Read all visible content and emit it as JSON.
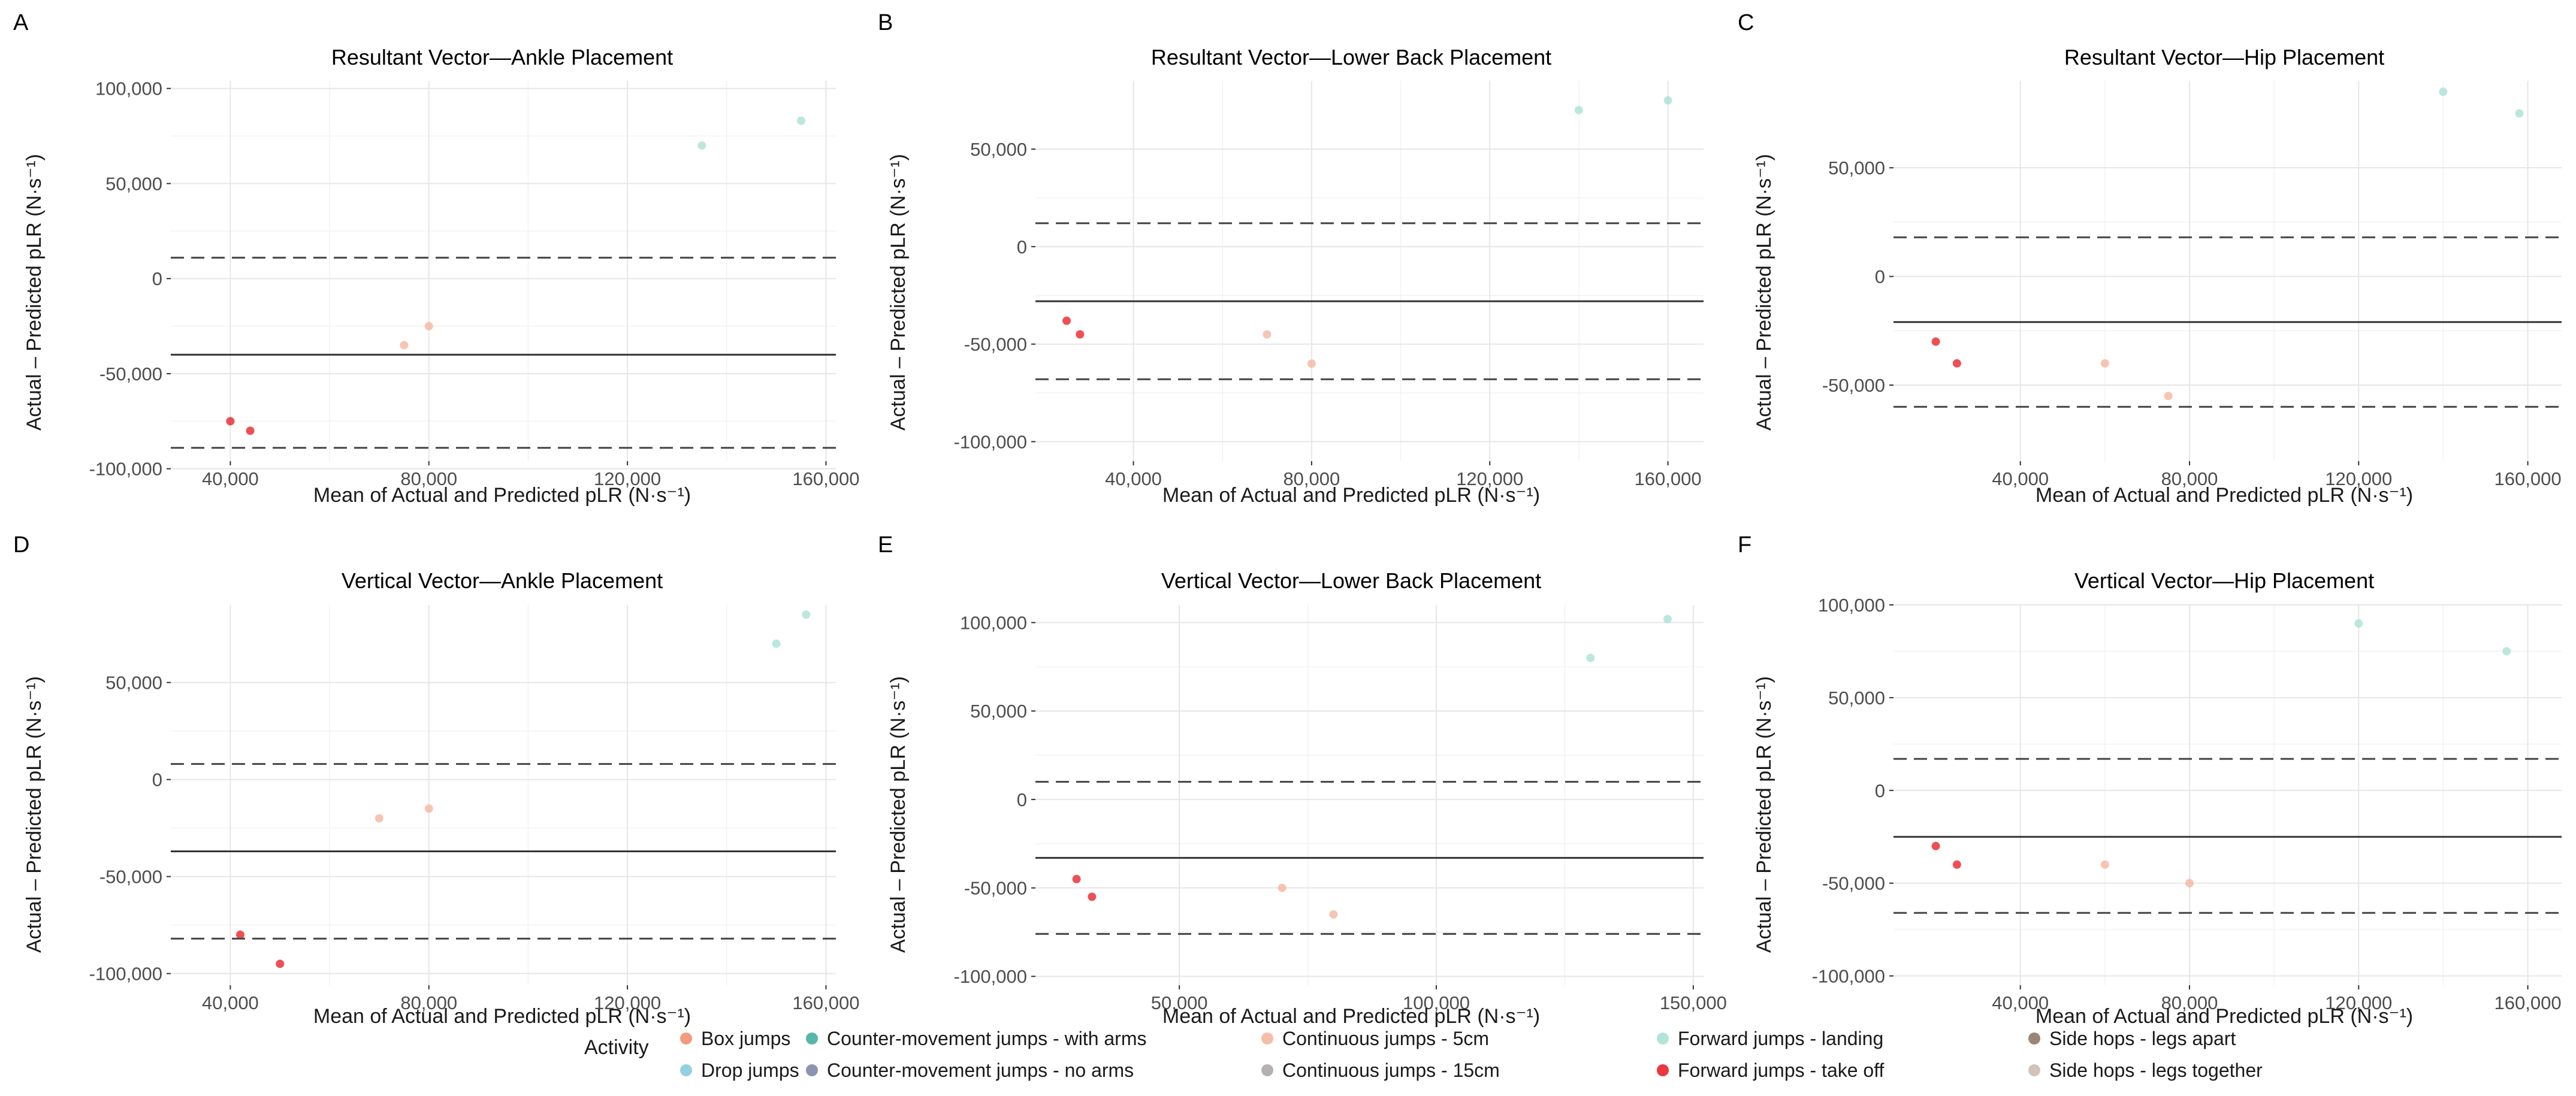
{
  "figure": {
    "legend_title": "Activity",
    "activities": [
      {
        "name": "Box jumps",
        "color": "#f08a67"
      },
      {
        "name": "Drop jumps",
        "color": "#7fc9dd"
      },
      {
        "name": "Counter-movement jumps - with arms",
        "color": "#3aa99a"
      },
      {
        "name": "Counter-movement jumps - no arms",
        "color": "#7a7fa6"
      },
      {
        "name": "Continuous jumps - 5cm",
        "color": "#f4b29a"
      },
      {
        "name": "Continuous jumps - 15cm",
        "color": "#a9a2a6"
      },
      {
        "name": "Forward jumps - landing",
        "color": "#a6dfd3"
      },
      {
        "name": "Forward jumps - take off",
        "color": "#e8141c"
      },
      {
        "name": "Side hops - legs apart",
        "color": "#8a705e"
      },
      {
        "name": "Side hops - legs together",
        "color": "#c9b9ad"
      }
    ]
  },
  "chart_data": [
    {
      "panel": "A",
      "type": "scatter",
      "title": "Resultant Vector—Ankle Placement",
      "xlabel": "Mean of Actual and Predicted pLR (N·s⁻¹)",
      "ylabel": "Actual – Predicted pLR (N·s⁻¹)",
      "xlim": [
        28000,
        162000
      ],
      "ylim": [
        -96000,
        104000
      ],
      "xticks": [
        40000,
        80000,
        120000,
        160000
      ],
      "xtick_labels": [
        "40,000",
        "80,000",
        "120,000",
        "160,000"
      ],
      "yticks": [
        -100000,
        -50000,
        0,
        50000,
        100000
      ],
      "ytick_labels": [
        "-100,000",
        "-50,000",
        "0",
        "50,000",
        "100,000"
      ],
      "mean_bias": -40000,
      "upper_loa": 11000,
      "lower_loa": -89000,
      "sample_points": {
        "Forward jumps - take off": [
          [
            40000,
            -75000
          ],
          [
            44000,
            -80000
          ]
        ],
        "Forward jumps - landing": [
          [
            135000,
            70000
          ],
          [
            155000,
            83000
          ]
        ],
        "Continuous jumps - 5cm": [
          [
            75000,
            -35000
          ],
          [
            80000,
            -25000
          ]
        ]
      }
    },
    {
      "panel": "B",
      "type": "scatter",
      "title": "Resultant Vector—Lower Back Placement",
      "xlabel": "Mean of Actual and Predicted pLR (N·s⁻¹)",
      "ylabel": "Actual – Predicted pLR (N·s⁻¹)",
      "xlim": [
        18000,
        168000
      ],
      "ylim": [
        -110000,
        85000
      ],
      "xticks": [
        40000,
        80000,
        120000,
        160000
      ],
      "xtick_labels": [
        "40,000",
        "80,000",
        "120,000",
        "160,000"
      ],
      "yticks": [
        -100000,
        -50000,
        0,
        50000
      ],
      "ytick_labels": [
        "-100,000",
        "-50,000",
        "0",
        "50,000"
      ],
      "mean_bias": -28000,
      "upper_loa": 12000,
      "lower_loa": -68000,
      "sample_points": {
        "Forward jumps - take off": [
          [
            25000,
            -38000
          ],
          [
            28000,
            -45000
          ]
        ],
        "Forward jumps - landing": [
          [
            140000,
            70000
          ],
          [
            160000,
            75000
          ]
        ],
        "Continuous jumps - 5cm": [
          [
            70000,
            -45000
          ],
          [
            80000,
            -60000
          ]
        ]
      }
    },
    {
      "panel": "C",
      "type": "scatter",
      "title": "Resultant Vector—Hip Placement",
      "xlabel": "Mean of Actual and Predicted pLR (N·s⁻¹)",
      "ylabel": "Actual – Predicted pLR (N·s⁻¹)",
      "xlim": [
        10000,
        168000
      ],
      "ylim": [
        -85000,
        90000
      ],
      "xticks": [
        40000,
        80000,
        120000,
        160000
      ],
      "xtick_labels": [
        "40,000",
        "80,000",
        "120,000",
        "160,000"
      ],
      "yticks": [
        -50000,
        0,
        50000
      ],
      "ytick_labels": [
        "-50,000",
        "0",
        "50,000"
      ],
      "mean_bias": -21000,
      "upper_loa": 18000,
      "lower_loa": -60000,
      "sample_points": {
        "Forward jumps - take off": [
          [
            20000,
            -30000
          ],
          [
            25000,
            -40000
          ]
        ],
        "Forward jumps - landing": [
          [
            140000,
            85000
          ],
          [
            158000,
            75000
          ]
        ],
        "Continuous jumps - 5cm": [
          [
            60000,
            -40000
          ],
          [
            75000,
            -55000
          ]
        ]
      }
    },
    {
      "panel": "D",
      "type": "scatter",
      "title": "Vertical Vector—Ankle Placement",
      "xlabel": "Mean of Actual and Predicted pLR (N·s⁻¹)",
      "ylabel": "Actual – Predicted pLR (N·s⁻¹)",
      "xlim": [
        28000,
        162000
      ],
      "ylim": [
        -106000,
        90000
      ],
      "xticks": [
        40000,
        80000,
        120000,
        160000
      ],
      "xtick_labels": [
        "40,000",
        "80,000",
        "120,000",
        "160,000"
      ],
      "yticks": [
        -100000,
        -50000,
        0,
        50000
      ],
      "ytick_labels": [
        "-100,000",
        "-50,000",
        "0",
        "50,000"
      ],
      "mean_bias": -37000,
      "upper_loa": 8000,
      "lower_loa": -82000,
      "sample_points": {
        "Forward jumps - take off": [
          [
            42000,
            -80000
          ],
          [
            50000,
            -95000
          ]
        ],
        "Forward jumps - landing": [
          [
            150000,
            70000
          ],
          [
            156000,
            85000
          ]
        ],
        "Continuous jumps - 5cm": [
          [
            70000,
            -20000
          ],
          [
            80000,
            -15000
          ]
        ]
      }
    },
    {
      "panel": "E",
      "type": "scatter",
      "title": "Vertical Vector—Lower Back Placement",
      "xlabel": "Mean of Actual and Predicted pLR (N·s⁻¹)",
      "ylabel": "Actual – Predicted pLR (N·s⁻¹)",
      "xlim": [
        22000,
        152000
      ],
      "ylim": [
        -105000,
        110000
      ],
      "xticks": [
        50000,
        100000,
        150000
      ],
      "xtick_labels": [
        "50,000",
        "100,000",
        "150,000"
      ],
      "yticks": [
        -100000,
        -50000,
        0,
        50000,
        100000
      ],
      "ytick_labels": [
        "-100,000",
        "-50,000",
        "0",
        "50,000",
        "100,000"
      ],
      "mean_bias": -33000,
      "upper_loa": 10000,
      "lower_loa": -76000,
      "sample_points": {
        "Forward jumps - take off": [
          [
            30000,
            -45000
          ],
          [
            33000,
            -55000
          ]
        ],
        "Forward jumps - landing": [
          [
            130000,
            80000
          ],
          [
            145000,
            102000
          ]
        ],
        "Continuous jumps - 5cm": [
          [
            70000,
            -50000
          ],
          [
            80000,
            -65000
          ]
        ]
      }
    },
    {
      "panel": "F",
      "type": "scatter",
      "title": "Vertical Vector—Hip Placement",
      "xlabel": "Mean of Actual and Predicted pLR (N·s⁻¹)",
      "ylabel": "Actual – Predicted pLR (N·s⁻¹)",
      "xlim": [
        10000,
        168000
      ],
      "ylim": [
        -105000,
        100000
      ],
      "xticks": [
        40000,
        80000,
        120000,
        160000
      ],
      "xtick_labels": [
        "40,000",
        "80,000",
        "120,000",
        "160,000"
      ],
      "yticks": [
        -100000,
        -50000,
        0,
        50000,
        100000
      ],
      "ytick_labels": [
        "-100,000",
        "-50,000",
        "0",
        "50,000",
        "100,000"
      ],
      "mean_bias": -25000,
      "upper_loa": 17000,
      "lower_loa": -66000,
      "sample_points": {
        "Forward jumps - take off": [
          [
            20000,
            -30000
          ],
          [
            25000,
            -40000
          ]
        ],
        "Forward jumps - landing": [
          [
            120000,
            90000
          ],
          [
            155000,
            75000
          ]
        ],
        "Continuous jumps - 5cm": [
          [
            60000,
            -40000
          ],
          [
            80000,
            -50000
          ]
        ]
      }
    }
  ]
}
